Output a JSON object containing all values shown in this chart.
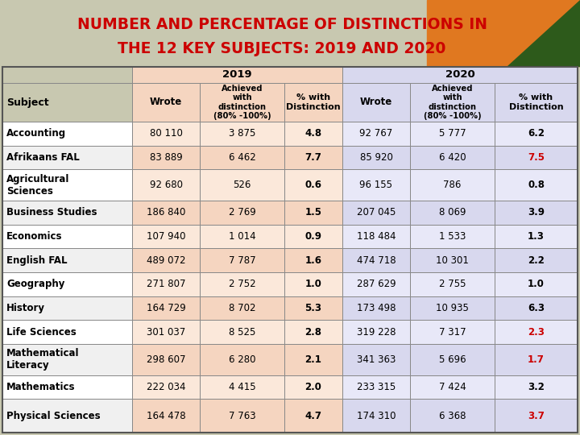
{
  "title_line1": "NUMBER AND PERCENTAGE OF DISTINCTIONS IN",
  "title_line2": "THE 12 KEY SUBJECTS: 2019 AND 2020",
  "title_color": "#CC0000",
  "bg_color": "#C8C8B0",
  "header_2019_bg": "#F5D5C0",
  "header_2020_bg": "#D8D8EE",
  "row_even_subj_bg": "#FFFFFF",
  "row_odd_subj_bg": "#F0F0F0",
  "row_even_2019_bg": "#FBE8DA",
  "row_odd_2019_bg": "#F5D5C0",
  "row_even_2020_bg": "#E8E8F8",
  "row_odd_2020_bg": "#D8D8EE",
  "border_color": "#999999",
  "text_color": "#000000",
  "red_color": "#CC0000",
  "orange_color": "#E07820",
  "green_color": "#2D5A1B",
  "subjects": [
    "Accounting",
    "Afrikaans FAL",
    "Agricultural\nSciences",
    "Business Studies",
    "Economics",
    "English FAL",
    "Geography",
    "History",
    "Life Sciences",
    "Mathematical\nLiteracy",
    "Mathematics",
    "Physical Sciences"
  ],
  "wrote_2019": [
    "80 110",
    "83 889",
    "92 680",
    "186 840",
    "107 940",
    "489 072",
    "271 807",
    "164 729",
    "301 037",
    "298 607",
    "222 034",
    "164 478"
  ],
  "achieved_2019": [
    "3 875",
    "6 462",
    "526",
    "2 769",
    "1 014",
    "7 787",
    "2 752",
    "8 702",
    "8 525",
    "6 280",
    "4 415",
    "7 763"
  ],
  "pct_2019": [
    "4.8",
    "7.7",
    "0.6",
    "1.5",
    "0.9",
    "1.6",
    "1.0",
    "5.3",
    "2.8",
    "2.1",
    "2.0",
    "4.7"
  ],
  "wrote_2020": [
    "92 767",
    "85 920",
    "96 155",
    "207 045",
    "118 484",
    "474 718",
    "287 629",
    "173 498",
    "319 228",
    "341 363",
    "233 315",
    "174 310"
  ],
  "achieved_2020": [
    "5 777",
    "6 420",
    "786",
    "8 069",
    "1 533",
    "10 301",
    "2 755",
    "10 935",
    "7 317",
    "5 696",
    "7 424",
    "6 368"
  ],
  "pct_2020": [
    "6.2",
    "7.5",
    "0.8",
    "3.9",
    "1.3",
    "2.2",
    "1.0",
    "6.3",
    "2.3",
    "1.7",
    "3.2",
    "3.7"
  ],
  "pct_2020_red": [
    false,
    true,
    false,
    false,
    false,
    false,
    false,
    false,
    true,
    true,
    false,
    true
  ]
}
